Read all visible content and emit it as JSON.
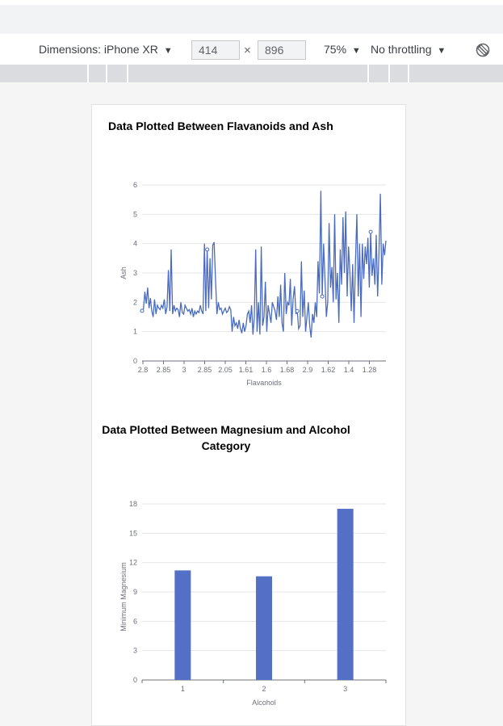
{
  "toolbar": {
    "device_label": "Dimensions: iPhone XR",
    "width_value": "414",
    "times_symbol": "×",
    "height_value": "896",
    "zoom_label": "75%",
    "throttle_label": "No throttling",
    "dropdown_glyph": "▼",
    "rotate_icon": "rotate-icon"
  },
  "colors": {
    "series": "#4a6bbf",
    "bar": "#5470c6",
    "grid": "#e6e6e6",
    "axis": "#6e7079"
  },
  "chart_data": [
    {
      "type": "line",
      "title": "Data Plotted Between Flavanoids and Ash",
      "xlabel": "Flavanoids",
      "ylabel": "Ash",
      "ylim": [
        0,
        6
      ],
      "yticks": [
        0,
        1,
        2,
        3,
        4,
        5,
        6
      ],
      "xticks": [
        "2.8",
        "2.85",
        "3",
        "2.85",
        "2.05",
        "1.61",
        "1.6",
        "1.68",
        "2.9",
        "1.62",
        "1.4",
        "1.28"
      ],
      "grid": true,
      "series": [
        {
          "values": [
            1.71,
            1.78,
            2.36,
            1.95,
            2.5,
            1.8,
            2.14,
            1.7,
            1.5,
            2.1,
            1.6,
            1.9,
            1.8,
            1.75,
            1.9,
            1.8,
            2.1,
            1.6,
            1.85,
            3.1,
            1.7,
            3.8,
            1.6,
            1.9,
            1.7,
            1.8,
            1.75,
            1.5,
            2.0,
            1.65,
            1.6,
            1.9,
            1.8,
            1.7,
            1.75,
            1.6,
            1.8,
            1.5,
            1.7,
            1.6,
            1.7,
            1.65,
            1.9,
            1.7,
            1.6,
            4.0,
            1.7,
            3.8,
            1.8,
            3.5,
            2.1,
            3.95,
            4.05,
            2.8,
            1.6,
            2.0,
            1.75,
            1.8,
            1.6,
            1.7,
            1.8,
            1.65,
            1.7,
            1.85,
            1.75,
            1.0,
            1.5,
            1.2,
            1.3,
            1.1,
            1.4,
            1.1,
            0.95,
            1.3,
            1.0,
            1.2,
            1.6,
            1.7,
            1.3,
            1.9,
            0.9,
            1.5,
            3.8,
            1.0,
            2.0,
            0.9,
            3.9,
            1.2,
            1.5,
            2.7,
            1.0,
            1.9,
            1.6,
            1.3,
            2.0,
            1.85,
            1.7,
            1.4,
            2.2,
            1.5,
            2.6,
            1.3,
            1.0,
            3.0,
            1.6,
            2.0,
            1.9,
            2.8,
            1.2,
            2.1,
            2.55,
            1.6,
            1.7,
            1.1,
            1.2,
            3.4,
            1.5,
            2.4,
            1.0,
            1.5,
            2.0,
            1.2,
            0.8,
            1.6,
            1.3,
            2.0,
            1.5,
            3.4,
            2.3,
            5.8,
            2.2,
            4.0,
            2.8,
            1.5,
            2.0,
            4.7,
            2.5,
            3.2,
            2.0,
            5.0,
            2.1,
            3.0,
            1.3,
            3.8,
            2.6,
            4.9,
            3.0,
            5.1,
            2.2,
            3.9,
            3.0,
            1.7,
            3.3,
            1.3,
            3.4,
            5.0,
            2.2,
            4.0,
            1.5,
            4.0,
            2.8,
            3.9,
            3.3,
            4.2,
            2.5,
            4.4,
            2.9,
            3.5,
            2.6,
            4.3,
            2.2,
            3.7,
            5.7,
            2.6,
            4.0,
            3.6,
            4.1
          ]
        }
      ],
      "marked_points": [
        0,
        47,
        112,
        130,
        165
      ]
    },
    {
      "type": "bar",
      "title": "Data Plotted Between Magnesium and Alcohol Category",
      "title_line1": "Data Plotted Between Magnesium and Alcohol",
      "title_line2": "Category",
      "xlabel": "Alcohol",
      "ylabel": "Minimum Magnesium",
      "categories": [
        "1",
        "2",
        "3"
      ],
      "values": [
        11.2,
        10.6,
        17.5
      ],
      "ylim": [
        0,
        18
      ],
      "yticks": [
        0,
        3,
        6,
        9,
        12,
        15,
        18
      ],
      "grid": true
    }
  ]
}
